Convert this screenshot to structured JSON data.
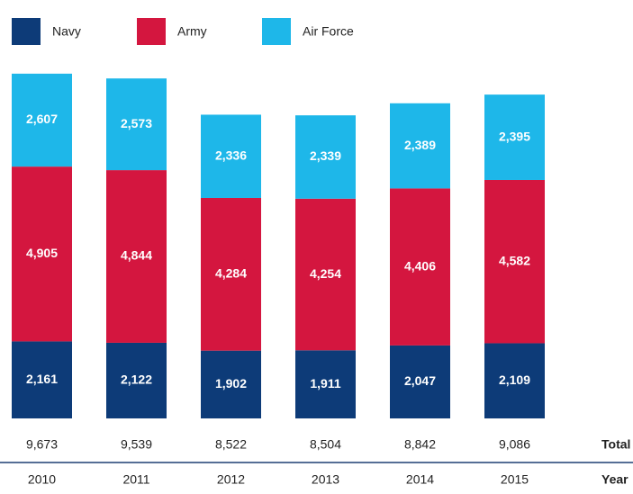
{
  "chart_data": {
    "type": "stacked-bar",
    "categories": [
      "2010",
      "2011",
      "2012",
      "2013",
      "2014",
      "2015"
    ],
    "series": [
      {
        "name": "Navy",
        "color": "#0d3b78",
        "values": [
          2161,
          2122,
          1902,
          1911,
          2047,
          2109
        ],
        "value_labels": [
          "2,161",
          "2,122",
          "1,902",
          "1,911",
          "2,047",
          "2,109"
        ]
      },
      {
        "name": "Army",
        "color": "#d4163f",
        "values": [
          4905,
          4844,
          4284,
          4254,
          4406,
          4582
        ],
        "value_labels": [
          "4,905",
          "4,844",
          "4,284",
          "4,254",
          "4,406",
          "4,582"
        ]
      },
      {
        "name": "Air Force",
        "color": "#1eb7e9",
        "values": [
          2607,
          2573,
          2336,
          2339,
          2389,
          2395
        ],
        "value_labels": [
          "2,607",
          "2,573",
          "2,336",
          "2,339",
          "2,389",
          "2,395"
        ]
      }
    ],
    "totals": {
      "name": "Total",
      "values": [
        9673,
        9539,
        8522,
        8504,
        8842,
        9086
      ],
      "value_labels": [
        "9,673",
        "9,539",
        "8,522",
        "8,504",
        "8,842",
        "9,086"
      ]
    },
    "x_label": "Year",
    "ylim": [
      0,
      10200
    ]
  }
}
